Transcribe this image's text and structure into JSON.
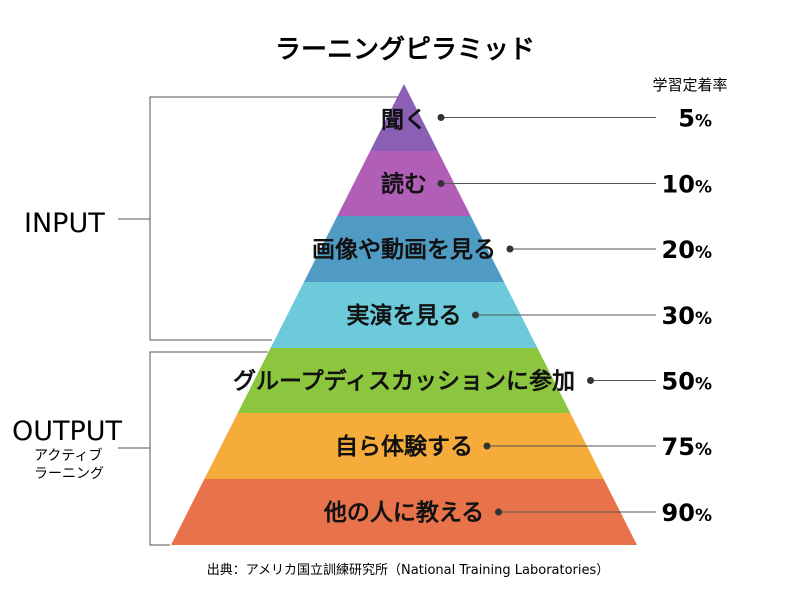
{
  "title": "ラーニングピラミッド",
  "rate_header": "学習定着率",
  "levels": [
    {
      "label": "聞く",
      "rate": "5",
      "color": "#8b5fb3"
    },
    {
      "label": "読む",
      "rate": "10",
      "color": "#b05eb6"
    },
    {
      "label": "画像や動画を見る",
      "rate": "20",
      "color": "#4f9bc4"
    },
    {
      "label": "実演を見る",
      "rate": "30",
      "color": "#6ccadb"
    },
    {
      "label": "グループディスカッションに参加",
      "rate": "50",
      "color": "#8cc63f"
    },
    {
      "label": "自ら体験する",
      "rate": "75",
      "color": "#f6ac3a"
    },
    {
      "label": "他の人に教える",
      "rate": "90",
      "color": "#e8734a"
    }
  ],
  "percent_unit": "%",
  "groups": {
    "input": {
      "label": "INPUT"
    },
    "output": {
      "label": "OUTPUT",
      "sub_line1": "アクティブ",
      "sub_line2": "ラーニング"
    }
  },
  "caption": "出典：アメリカ国立訓練研究所（National Training Laboratories）"
}
